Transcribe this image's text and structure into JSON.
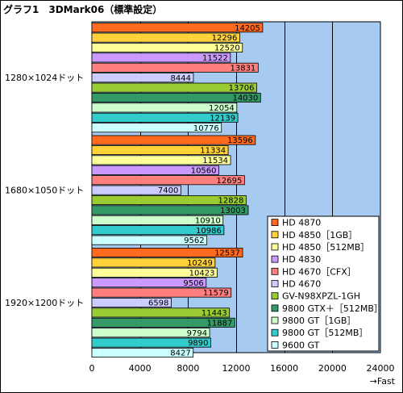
{
  "chart_data": {
    "type": "bar",
    "orientation": "horizontal",
    "title": "グラフ1　3DMark06（標準設定）",
    "xlabel": "→Fast",
    "xlim": [
      0,
      24000
    ],
    "xticks": [
      0,
      4000,
      8000,
      12000,
      16000,
      20000,
      24000
    ],
    "grid": true,
    "legend_position": "bottom-right",
    "groups": [
      "1280×1024ドット",
      "1680×1050ドット",
      "1920×1200ドット"
    ],
    "series": [
      {
        "name": "HD 4870",
        "color": "#ff6a1f",
        "values": [
          14205,
          13596,
          12537
        ]
      },
      {
        "name": "HD 4850［1GB］",
        "color": "#ffd23a",
        "values": [
          12296,
          11334,
          10249
        ]
      },
      {
        "name": "HD 4850［512MB］",
        "color": "#ffff99",
        "values": [
          12520,
          11534,
          10423
        ]
      },
      {
        "name": "HD 4830",
        "color": "#cc99ff",
        "values": [
          11522,
          10560,
          9506
        ]
      },
      {
        "name": "HD 4670［CFX］",
        "color": "#ff7f7f",
        "values": [
          13831,
          12695,
          11579
        ]
      },
      {
        "name": "HD 4670",
        "color": "#ccccff",
        "values": [
          8444,
          7400,
          6598
        ]
      },
      {
        "name": "GV-N98XPZL-1GH",
        "color": "#99cc33",
        "values": [
          13706,
          12828,
          11443
        ]
      },
      {
        "name": "9800 GTX＋［512MB］",
        "color": "#339966",
        "values": [
          14030,
          13003,
          11887
        ]
      },
      {
        "name": "9800 GT［1GB］",
        "color": "#ccffcc",
        "values": [
          12054,
          10910,
          9794
        ]
      },
      {
        "name": "9800 GT［512MB］",
        "color": "#33cccc",
        "values": [
          12139,
          10986,
          9890
        ]
      },
      {
        "name": "9600 GT",
        "color": "#ccffff",
        "values": [
          10776,
          9562,
          8427
        ]
      }
    ]
  },
  "colors": {
    "plot_background": "#a6caf0",
    "gridline": "#000000"
  }
}
